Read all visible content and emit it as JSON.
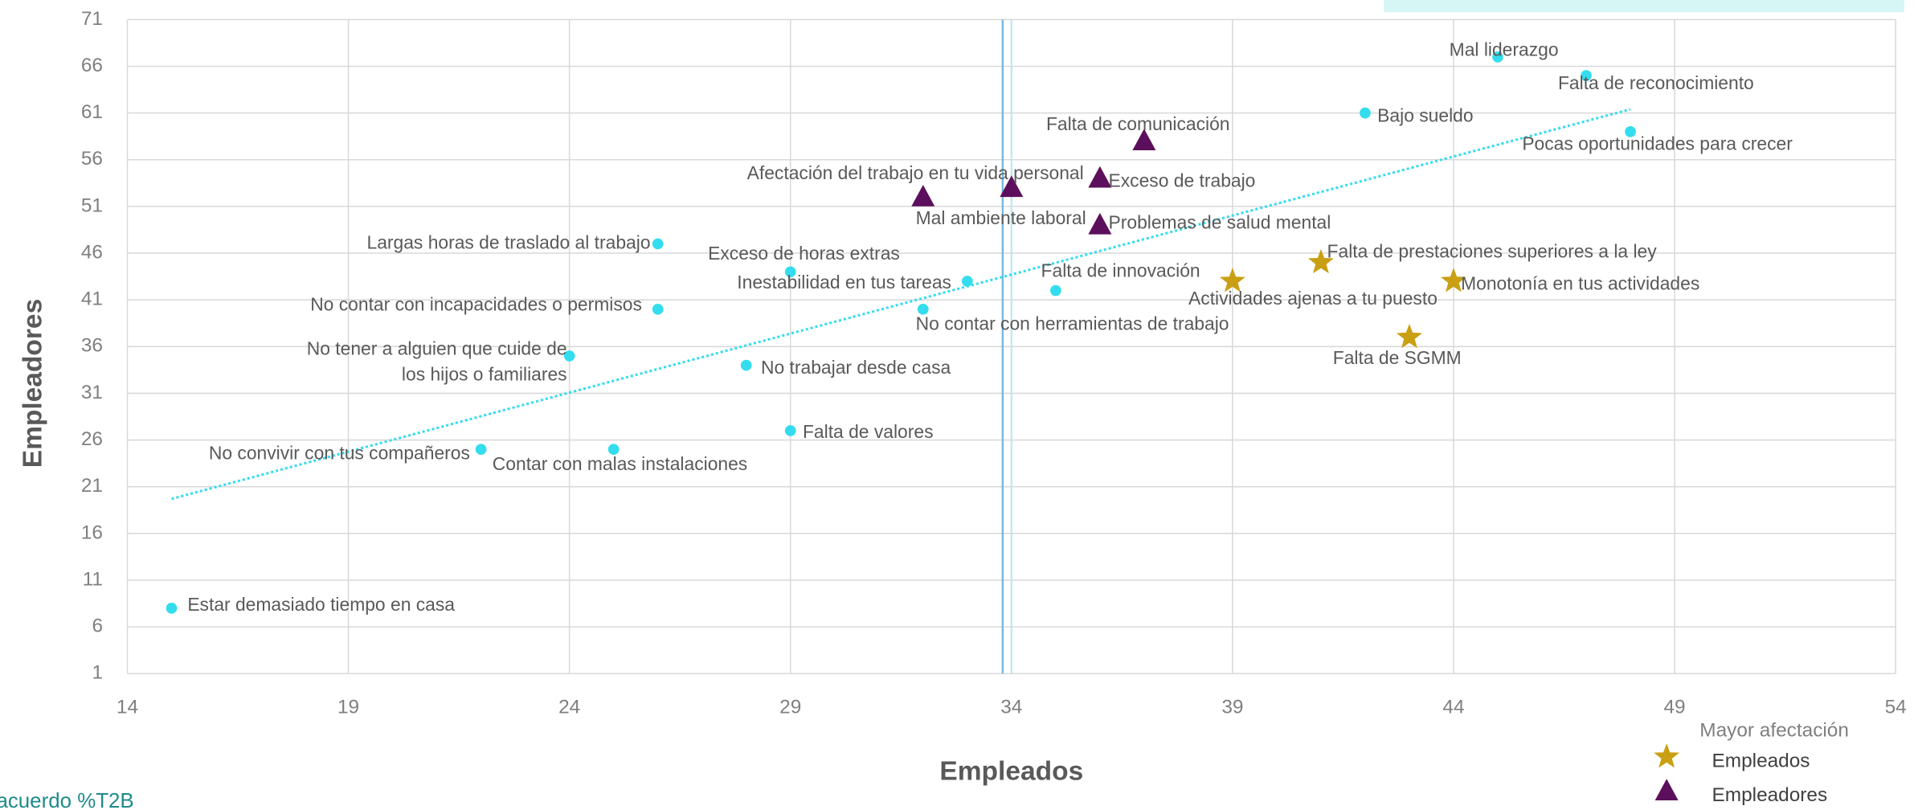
{
  "chart_data": {
    "type": "scatter",
    "x_label": "Empleados",
    "y_label": "Empleadores",
    "footnote": "acuerdo %T2B",
    "legend_title": "Mayor afectación",
    "xlim": [
      14,
      54
    ],
    "xticks": [
      14,
      19,
      24,
      29,
      34,
      39,
      44,
      49,
      54
    ],
    "ylim": [
      1,
      71
    ],
    "yticks": [
      1,
      6,
      11,
      16,
      21,
      26,
      31,
      36,
      41,
      46,
      51,
      56,
      61,
      66,
      71
    ],
    "grid": true,
    "vlines": [
      33.8,
      34
    ],
    "trendline": {
      "color": "#33DDEE",
      "x": [
        15,
        48
      ],
      "y": [
        19.7,
        61.4
      ]
    },
    "series": [
      {
        "color": "#33DDEE",
        "marker": "circle",
        "x": [
          45,
          47,
          42,
          48,
          26,
          29,
          33,
          26,
          35,
          32,
          24,
          28,
          29,
          22,
          25,
          15
        ],
        "values": [
          67,
          65,
          61,
          59,
          47,
          44,
          43,
          40,
          42,
          40,
          35,
          34,
          27,
          25,
          25,
          8
        ],
        "labels": [
          "Mal liderazgo",
          "Falta de reconocimiento",
          "Bajo sueldo",
          "Pocas oportunidades para crecer",
          "Largas horas de traslado al trabajo",
          "Exceso de horas extras",
          "Inestabilidad en tus tareas",
          "No contar con incapacidades o permisos",
          "Falta de innovación",
          "No contar con herramientas de trabajo",
          "No tener a alguien que cuide de\nlos hijos o familiares",
          "No trabajar desde casa",
          "Falta de valores",
          "No convivir con tus compañeros",
          "Contar con malas instalaciones",
          "Estar demasiado tiempo en casa"
        ]
      },
      {
        "name": "Empleados",
        "color": "#C9A014",
        "marker": "star",
        "x": [
          39,
          41,
          44,
          43
        ],
        "values": [
          43,
          45,
          43,
          37
        ],
        "labels": [
          "Actividades ajenas a tu puesto",
          "Falta de prestaciones superiores a la ley",
          "Monotonía en tus actividades",
          "Falta de SGMM"
        ]
      },
      {
        "name": "Empleadores",
        "color": "#5C0F5C",
        "marker": "triangle",
        "x": [
          37,
          34,
          36,
          32,
          36
        ],
        "values": [
          58,
          53,
          54,
          52,
          49
        ],
        "labels": [
          "Falta de comunicación",
          "Afectación del trabajo en tu vida personal",
          "Exceso de trabajo",
          "Mal ambiente laboral",
          "Problemas de salud mental"
        ]
      }
    ]
  }
}
